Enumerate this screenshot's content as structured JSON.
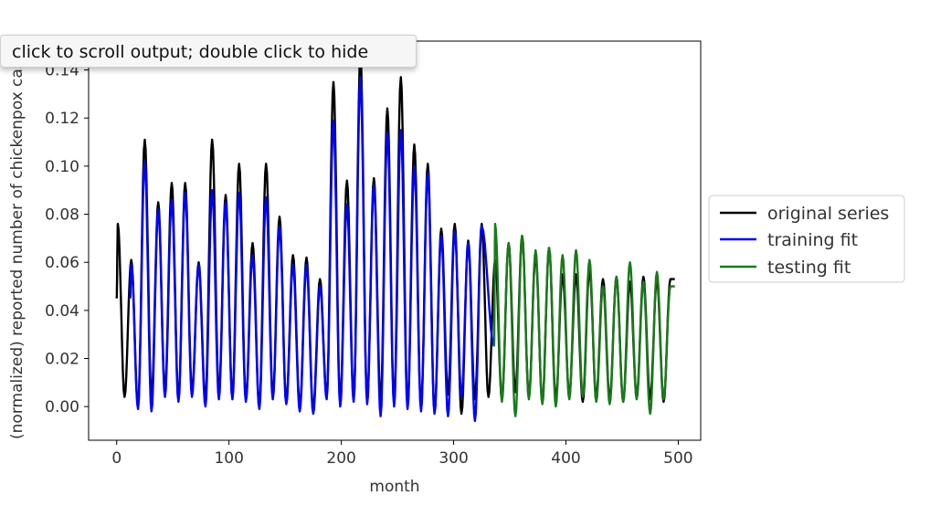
{
  "tooltip": {
    "text": "click to scroll output; double click to hide"
  },
  "colors": {
    "original": "#000000",
    "training": "#0000ff",
    "testing": "#1a7a1a"
  },
  "chart_data": {
    "type": "line",
    "title": "",
    "xlabel": "month",
    "ylabel": "(normalized) reported number of chickenpox cases",
    "xlim": [
      -25,
      520
    ],
    "ylim": [
      -0.014,
      0.152
    ],
    "xticks": [
      0,
      100,
      200,
      300,
      400,
      500
    ],
    "xtick_labels": [
      "0",
      "100",
      "200",
      "300",
      "400",
      "500"
    ],
    "yticks": [
      0.0,
      0.02,
      0.04,
      0.06,
      0.08,
      0.1,
      0.12,
      0.14
    ],
    "ytick_labels": [
      "0.00",
      "0.02",
      "0.04",
      "0.06",
      "0.08",
      "0.10",
      "0.12",
      "0.14"
    ],
    "legend_position": "outside-right",
    "period_months": 12,
    "series": [
      {
        "name": "original series",
        "color_key": "original",
        "x_range": [
          0,
          497
        ],
        "start_value": 0.045,
        "end_value": 0.053,
        "peaks": [
          0.076,
          0.061,
          0.111,
          0.085,
          0.093,
          0.093,
          0.06,
          0.111,
          0.088,
          0.101,
          0.068,
          0.101,
          0.079,
          0.063,
          0.062,
          0.053,
          0.135,
          0.094,
          0.147,
          0.095,
          0.124,
          0.137,
          0.109,
          0.101,
          0.074,
          0.076,
          0.069,
          0.076,
          0.061,
          0.068,
          0.071,
          0.063,
          0.066,
          0.055,
          0.055,
          0.057,
          0.053,
          0.054,
          0.052,
          0.054,
          0.053,
          0.053
        ],
        "troughs": [
          0.004,
          0.0,
          0.004,
          0.006,
          0.003,
          0.006,
          0.003,
          0.005,
          0.004,
          0.003,
          0.0,
          0.004,
          0.002,
          0.0,
          -0.001,
          0.004,
          0.001,
          0.003,
          0.002,
          0.002,
          0.001,
          0.0,
          -0.001,
          -0.002,
          0.005,
          -0.003,
          0.003,
          0.004,
          0.003,
          0.006,
          0.004,
          0.002,
          0.003,
          0.005,
          0.002,
          0.004,
          0.003,
          0.002,
          0.004,
          0.003,
          0.002
        ]
      },
      {
        "name": "training fit",
        "color_key": "training",
        "x_range": [
          12,
          336
        ],
        "start_value": 0.045,
        "end_value": 0.025,
        "peaks": [
          0.059,
          0.102,
          0.082,
          0.086,
          0.089,
          0.059,
          0.09,
          0.085,
          0.089,
          0.063,
          0.087,
          0.075,
          0.059,
          0.059,
          0.05,
          0.119,
          0.084,
          0.137,
          0.092,
          0.114,
          0.115,
          0.1,
          0.097,
          0.071,
          0.073,
          0.068,
          0.075
        ],
        "troughs": [
          -0.001,
          -0.002,
          0.004,
          0.002,
          0.004,
          0.0,
          0.003,
          0.003,
          0.002,
          -0.001,
          0.003,
          0.001,
          -0.002,
          -0.003,
          0.003,
          0.0,
          0.002,
          0.001,
          -0.004,
          0.0,
          -0.001,
          -0.002,
          -0.003,
          -0.004,
          0.004,
          -0.006
        ]
      },
      {
        "name": "testing fit",
        "color_key": "testing",
        "x_range": [
          336,
          497
        ],
        "start_value": 0.025,
        "end_value": 0.05,
        "peaks": [
          0.076,
          0.068,
          0.071,
          0.065,
          0.066,
          0.063,
          0.065,
          0.061,
          0.05,
          0.054,
          0.06,
          0.052,
          0.056,
          0.05,
          0.052
        ],
        "troughs": [
          0.002,
          -0.004,
          0.003,
          0.001,
          0.0,
          0.003,
          0.004,
          0.002,
          0.001,
          0.002,
          0.003,
          -0.003,
          0.003,
          -0.002
        ]
      }
    ]
  }
}
